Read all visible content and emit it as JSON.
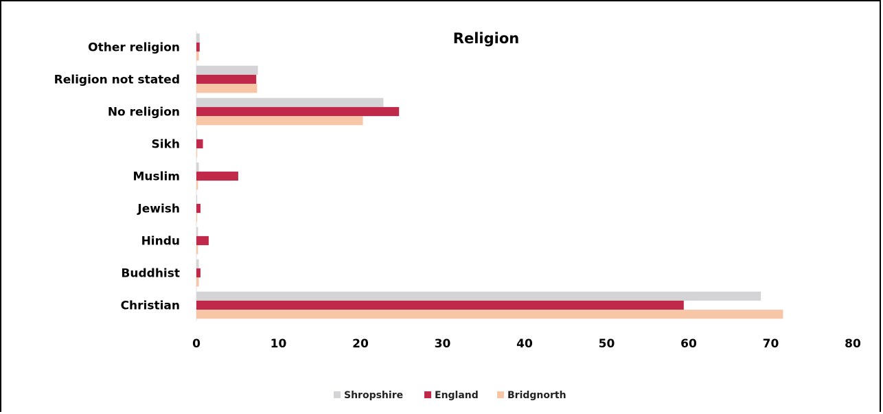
{
  "chart_data": {
    "type": "bar",
    "orientation": "horizontal",
    "title": "Religion",
    "xlabel": "",
    "ylabel": "",
    "xlim": [
      0,
      80
    ],
    "x_ticks": [
      "0",
      "10",
      "20",
      "30",
      "40",
      "50",
      "60",
      "70",
      "80"
    ],
    "grid": false,
    "legend_position": "bottom",
    "categories": [
      "Other religion",
      "Religion not stated",
      "No religion",
      "Sikh",
      "Muslim",
      "Jewish",
      "Hindu",
      "Buddhist",
      "Christian"
    ],
    "series": [
      {
        "name": "Shropshire",
        "color": "#d4d4d6",
        "values": [
          0.4,
          7.5,
          22.8,
          0.1,
          0.3,
          0.1,
          0.2,
          0.3,
          68.8
        ]
      },
      {
        "name": "England",
        "color": "#c0294a",
        "values": [
          0.4,
          7.3,
          24.7,
          0.8,
          5.1,
          0.5,
          1.5,
          0.5,
          59.4
        ]
      },
      {
        "name": "Bridgnorth",
        "color": "#f6c6a6",
        "values": [
          0.3,
          7.4,
          20.3,
          0.1,
          0.2,
          0.1,
          0.2,
          0.3,
          71.5
        ]
      }
    ]
  }
}
